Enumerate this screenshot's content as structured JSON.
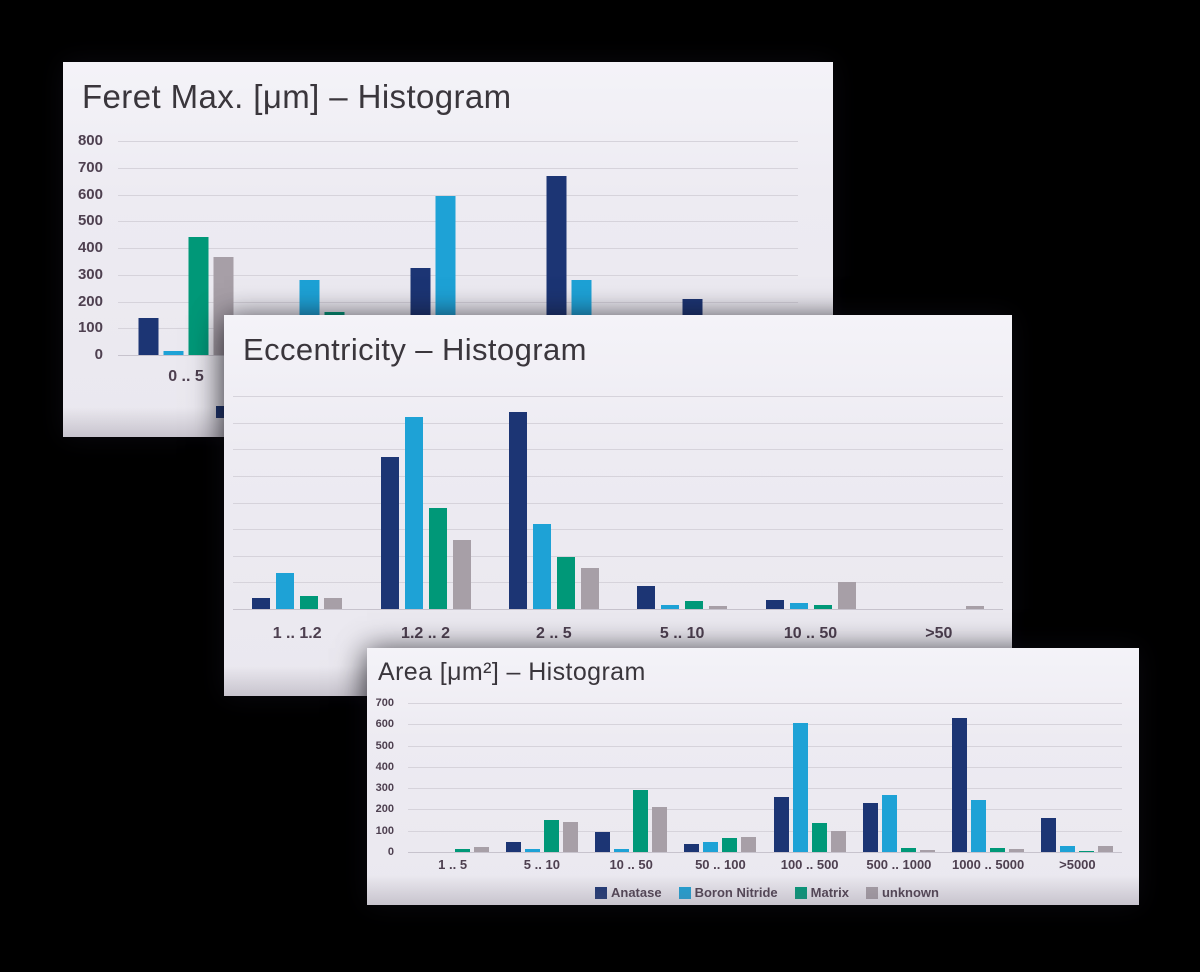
{
  "page": {
    "background": "#000000"
  },
  "colors": {
    "anatase": "#1c3574",
    "boron_nitride": "#1ea2d6",
    "matrix": "#009878",
    "unknown": "#a79fa7",
    "panel_background": "#edebf2",
    "gridline": "#d6d3db",
    "title_text": "#3a363c",
    "axis_text": "#4e4050"
  },
  "legend": {
    "items": [
      {
        "label": "Anatase",
        "color": "#1c3574"
      },
      {
        "label": "Boron Nitride",
        "color": "#1ea2d6"
      },
      {
        "label": "Matrix",
        "color": "#009878"
      },
      {
        "label": "unknown",
        "color": "#a79fa7"
      }
    ]
  },
  "chart_data": [
    {
      "id": "feret-max",
      "type": "bar",
      "title": "Feret Max. [μm] – Histogram",
      "xlabel": "",
      "ylabel": "",
      "ylim": [
        0,
        800
      ],
      "yticks": [
        800,
        700,
        600,
        500,
        400,
        300,
        200,
        100,
        0
      ],
      "grid": true,
      "legend_position": "bottom-left-partially-hidden",
      "categories": [
        "0 .. 5",
        "",
        "",
        "",
        ""
      ],
      "series": [
        {
          "name": "Anatase",
          "color": "#1c3574",
          "values": [
            140,
            0,
            325,
            670,
            210
          ]
        },
        {
          "name": "Boron Nitride",
          "color": "#1ea2d6",
          "values": [
            15,
            280,
            595,
            280,
            0
          ]
        },
        {
          "name": "Matrix",
          "color": "#009878",
          "values": [
            440,
            160,
            0,
            0,
            0
          ]
        },
        {
          "name": "unknown",
          "color": "#a79fa7",
          "values": [
            365,
            0,
            0,
            0,
            0
          ]
        }
      ]
    },
    {
      "id": "eccentricity",
      "type": "bar",
      "title": "Eccentricity – Histogram",
      "xlabel": "",
      "ylabel": "",
      "ylim": [
        0,
        800
      ],
      "yticks": [],
      "grid": true,
      "legend_position": "none-visible",
      "categories": [
        "1 .. 1.2",
        "1.2 .. 2",
        "2 .. 5",
        "5 .. 10",
        "10 .. 50",
        ">50"
      ],
      "series": [
        {
          "name": "Anatase",
          "color": "#1c3574",
          "values": [
            40,
            570,
            740,
            85,
            35,
            0
          ]
        },
        {
          "name": "Boron Nitride",
          "color": "#1ea2d6",
          "values": [
            135,
            720,
            320,
            15,
            22,
            0
          ]
        },
        {
          "name": "Matrix",
          "color": "#009878",
          "values": [
            50,
            380,
            195,
            30,
            15,
            0
          ]
        },
        {
          "name": "unknown",
          "color": "#a79fa7",
          "values": [
            40,
            260,
            155,
            10,
            100,
            10
          ]
        }
      ]
    },
    {
      "id": "area",
      "type": "bar",
      "title": "Area [μm²] – Histogram",
      "xlabel": "",
      "ylabel": "",
      "ylim": [
        0,
        700
      ],
      "yticks": [
        700,
        600,
        500,
        400,
        300,
        200,
        100,
        0
      ],
      "grid": true,
      "legend_position": "bottom-center",
      "categories": [
        "1 .. 5",
        "5 .. 10",
        "10 .. 50",
        "50 .. 100",
        "100 .. 500",
        "500 .. 1000",
        "1000 .. 5000",
        ">5000"
      ],
      "series": [
        {
          "name": "Anatase",
          "color": "#1c3574",
          "values": [
            0,
            45,
            95,
            38,
            260,
            230,
            630,
            160
          ]
        },
        {
          "name": "Boron Nitride",
          "color": "#1ea2d6",
          "values": [
            0,
            12,
            15,
            47,
            605,
            270,
            245,
            30
          ]
        },
        {
          "name": "Matrix",
          "color": "#009878",
          "values": [
            15,
            150,
            290,
            65,
            135,
            18,
            20,
            5
          ]
        },
        {
          "name": "unknown",
          "color": "#a79fa7",
          "values": [
            25,
            140,
            210,
            70,
            100,
            8,
            12,
            30
          ]
        }
      ]
    }
  ]
}
